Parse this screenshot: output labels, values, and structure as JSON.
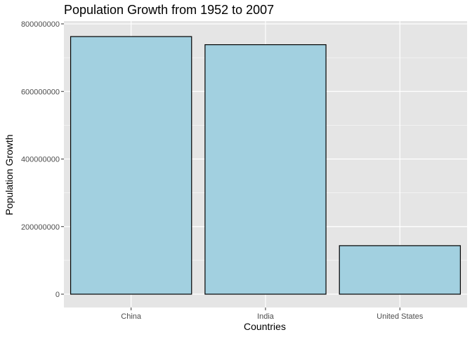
{
  "chart_data": {
    "type": "bar",
    "title": "Population Growth from 1952 to 2007",
    "xlabel": "Countries",
    "ylabel": "Population Growth",
    "categories": [
      "China",
      "India",
      "United States"
    ],
    "values": [
      762419569,
      738396331,
      143586947
    ],
    "ylim": [
      0,
      800000000
    ],
    "yticks": [
      0,
      200000000,
      400000000,
      600000000,
      800000000
    ],
    "ytick_labels": [
      "0",
      "200000000",
      "400000000",
      "600000000",
      "800000000"
    ],
    "grid": true,
    "legend": "none"
  },
  "colors": {
    "panel_background": "#e5e5e5",
    "grid_line": "#ffffff",
    "bar_fill": "#a2d0e0",
    "bar_outline": "#000000",
    "tick_text": "#4d4d4d"
  }
}
